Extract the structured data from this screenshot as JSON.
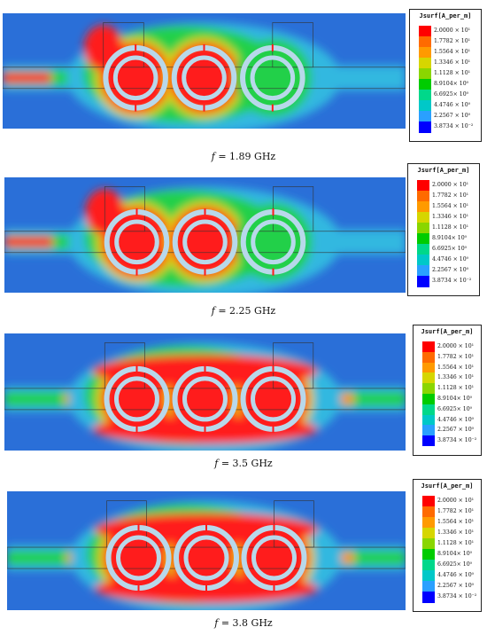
{
  "colorbar": {
    "title": "Jsurf[A_per_m]",
    "ticks": [
      "2.0000 × 10¹",
      "1.7782 × 10¹",
      "1.5564 × 10¹",
      "1.3346 × 10¹",
      "1.1128 × 10¹",
      "8.9104× 10⁰",
      "6.6925× 10⁰",
      "4.4746 × 10⁰",
      "2.2567 × 10⁰",
      "3.8734 × 10⁻²"
    ],
    "colors": [
      "#ff0000",
      "#ff6a00",
      "#ff9a00",
      "#d6d600",
      "#8ad600",
      "#00cc00",
      "#00d88a",
      "#00c8c8",
      "#2aa0ff",
      "#0000ff"
    ]
  },
  "panels": [
    {
      "caption_prefix": "f",
      "caption_value": "= 1.89 GHz",
      "hot_rings": [
        1,
        1,
        0.2
      ]
    },
    {
      "caption_prefix": "f",
      "caption_value": "= 2.25 GHz",
      "hot_rings": [
        1,
        0.7,
        0.15
      ]
    },
    {
      "caption_prefix": "f",
      "caption_value": "= 3.5 GHz",
      "hot_rings": [
        1,
        1,
        1
      ]
    },
    {
      "caption_prefix": "f",
      "caption_value": "= 3.8 GHz",
      "hot_rings": [
        1,
        1,
        1
      ]
    }
  ],
  "field_colors": {
    "background": "#2a6fd8",
    "cyan": "#33b8e0",
    "green": "#22d04a",
    "yellow": "#d8d800",
    "orange": "#ff8c00",
    "red": "#ff1a1a",
    "ring": "#b8d8ea"
  }
}
